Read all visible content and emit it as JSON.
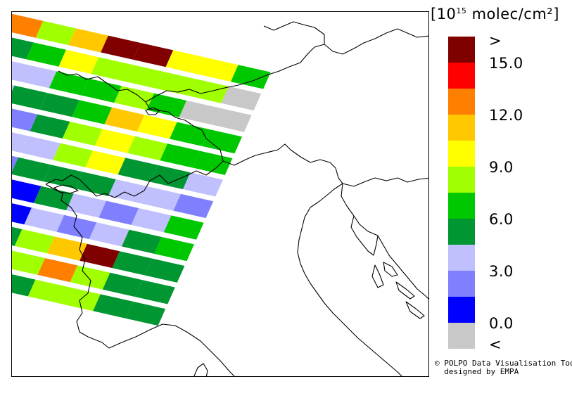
{
  "legend": {
    "unit_prefix": "[10",
    "unit_exponent": "15",
    "unit_suffix": " molec/cm²]",
    "bins": [
      {
        "color": "#800000"
      },
      {
        "color": "#ff0000"
      },
      {
        "color": "#ff8000"
      },
      {
        "color": "#ffc800"
      },
      {
        "color": "#ffff00"
      },
      {
        "color": "#a0ff00"
      },
      {
        "color": "#00c800"
      },
      {
        "color": "#009632"
      },
      {
        "color": "#c0c0ff"
      },
      {
        "color": "#8080ff"
      },
      {
        "color": "#0000ff"
      },
      {
        "color": "#c8c8c8"
      }
    ],
    "labels": [
      ">",
      "15.0",
      "12.0",
      "9.0",
      "6.0",
      "3.0",
      "0.0",
      "<"
    ]
  },
  "credit": {
    "line1": "© POLPO Data Visualisation Tool",
    "line2": "  designed by EMPA"
  },
  "satellite_swath": {
    "rows": [
      [
        "c",
        "c",
        "f",
        "d",
        "a",
        "a",
        "e",
        "e",
        "g"
      ],
      [
        "i",
        "h",
        "g",
        "e",
        "f",
        "f",
        "f",
        "f",
        "l"
      ],
      [
        "i",
        "i",
        "i",
        "g",
        "g",
        "f",
        "g",
        "l",
        "l"
      ],
      [
        "j",
        "i",
        "h",
        "h",
        "g",
        "d",
        "e",
        "g",
        "g"
      ],
      [
        "k",
        "i",
        "j",
        "h",
        "f",
        "e",
        "f",
        "g",
        "g"
      ],
      [
        "j",
        "j",
        "i",
        "i",
        "f",
        "e",
        "h",
        "h",
        "i"
      ],
      [
        "h",
        "i",
        "j",
        "h",
        "h",
        "h",
        "i",
        "i",
        "j"
      ],
      [
        "i",
        "i",
        "k",
        "k",
        "h",
        "i",
        "j",
        "i",
        "g"
      ],
      [
        "j",
        "k",
        "k",
        "k",
        "i",
        "j",
        "i",
        "h",
        "g"
      ],
      [
        "k",
        "k",
        "j",
        "h",
        "f",
        "d",
        "a",
        "h",
        "h"
      ],
      [
        "i",
        "i",
        "i",
        "h",
        "f",
        "c",
        "f",
        "h",
        "h"
      ],
      [
        "j",
        "i",
        "h",
        "h",
        "h",
        "f",
        "f",
        "h",
        "h"
      ]
    ],
    "color_keys": {
      "a": "#800000",
      "b": "#ff0000",
      "c": "#ff8000",
      "d": "#ffc800",
      "e": "#ffff00",
      "f": "#a0ff00",
      "g": "#00c800",
      "h": "#009632",
      "i": "#c0c0ff",
      "j": "#8080ff",
      "k": "#0000ff",
      "l": "#c8c8c8"
    }
  }
}
